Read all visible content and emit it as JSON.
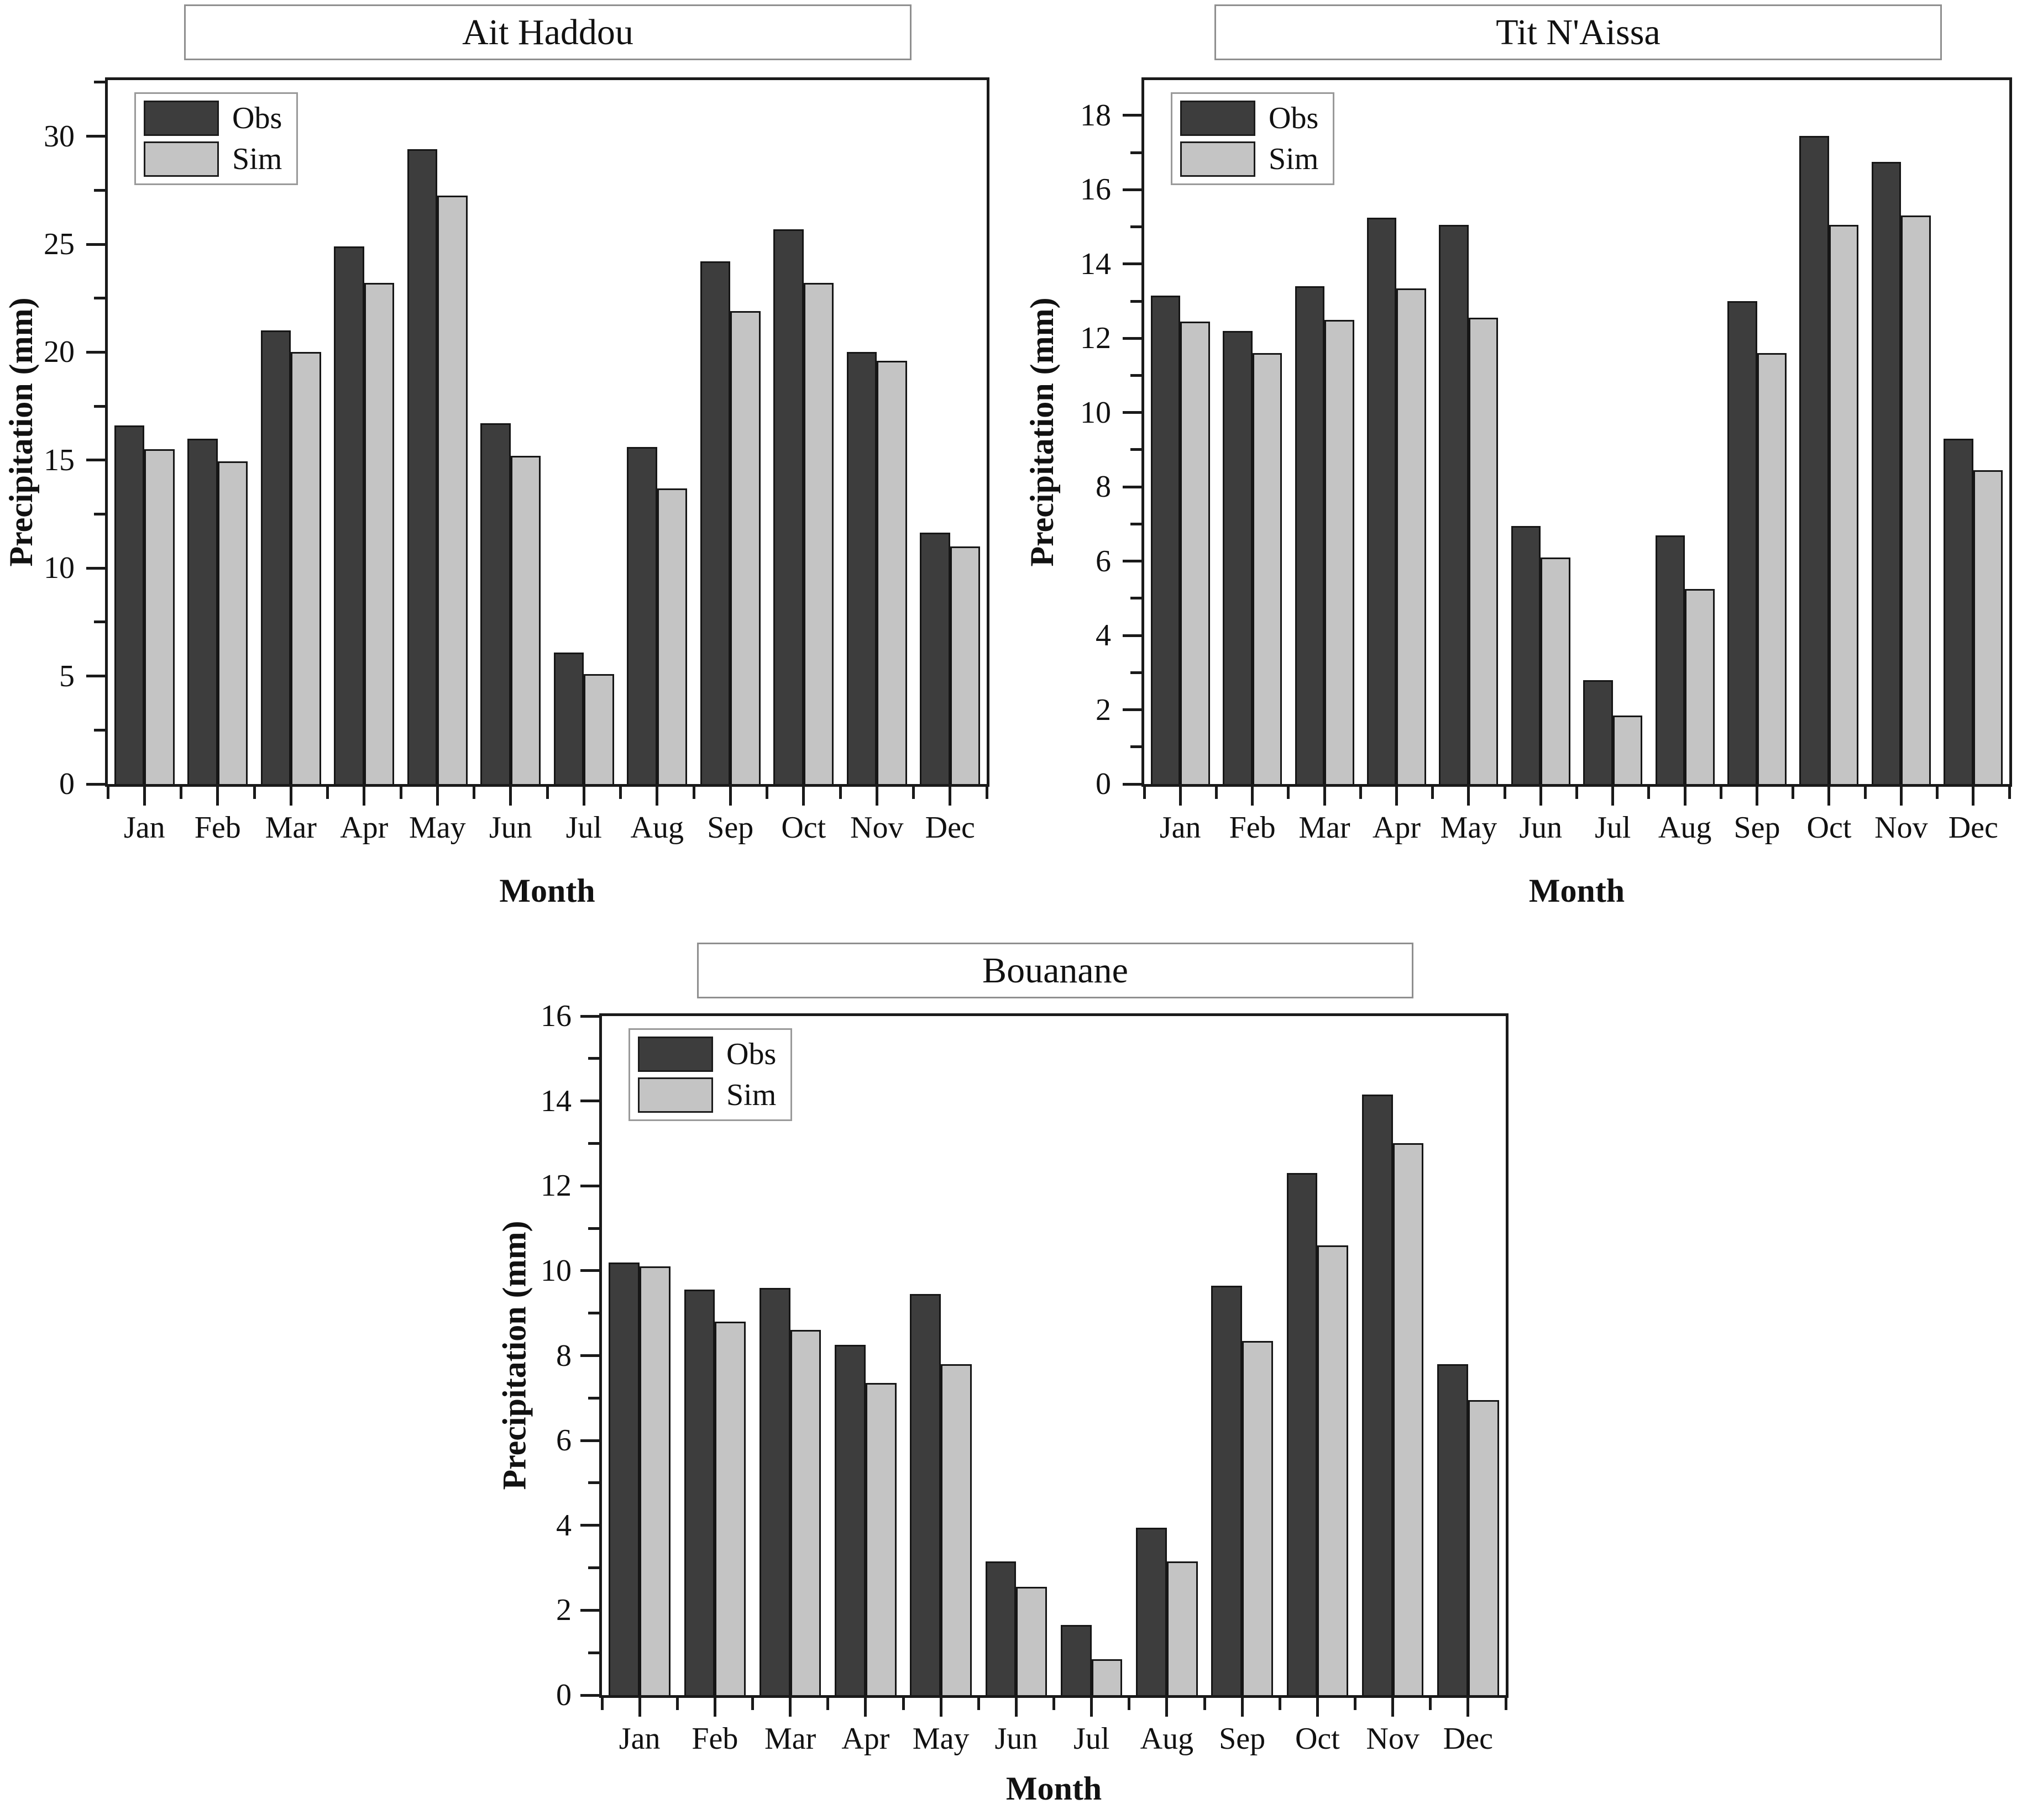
{
  "figure": {
    "background": "#ffffff",
    "colors": {
      "obs_fill": "#3d3d3d",
      "sim_fill": "#c4c4c4",
      "bar_border": "#161616",
      "axis": "#1a1a1a"
    }
  },
  "chart_data": [
    {
      "type": "bar",
      "title": "Ait Haddou",
      "xlabel": "Month",
      "ylabel": "Precipitation (mm)",
      "categories": [
        "Jan",
        "Feb",
        "Mar",
        "Apr",
        "May",
        "Jun",
        "Jul",
        "Aug",
        "Sep",
        "Oct",
        "Nov",
        "Dec"
      ],
      "series": [
        {
          "name": "Obs",
          "values": [
            16.6,
            16.0,
            21.0,
            24.9,
            29.4,
            16.7,
            6.1,
            15.6,
            24.2,
            25.7,
            20.0,
            11.65
          ]
        },
        {
          "name": "Sim",
          "values": [
            15.5,
            14.95,
            20.0,
            23.2,
            27.25,
            15.2,
            5.1,
            13.7,
            21.9,
            23.2,
            19.6,
            11.0
          ]
        }
      ],
      "ylim": [
        0,
        32.6
      ],
      "yticks": [
        0,
        5,
        10,
        15,
        20,
        25,
        30
      ],
      "y_minor_step": 2.5,
      "legend_position": "top-left",
      "grid": false
    },
    {
      "type": "bar",
      "title": "Tit N'Aissa",
      "xlabel": "Month",
      "ylabel": "Precipitation (mm)",
      "categories": [
        "Jan",
        "Feb",
        "Mar",
        "Apr",
        "May",
        "Jun",
        "Jul",
        "Aug",
        "Sep",
        "Oct",
        "Nov",
        "Dec"
      ],
      "series": [
        {
          "name": "Obs",
          "values": [
            13.15,
            12.2,
            13.4,
            15.25,
            15.05,
            6.95,
            2.8,
            6.7,
            13.0,
            17.45,
            16.75,
            9.3
          ]
        },
        {
          "name": "Sim",
          "values": [
            12.45,
            11.6,
            12.5,
            13.35,
            12.55,
            6.1,
            1.85,
            5.25,
            11.6,
            15.05,
            15.3,
            8.45
          ]
        }
      ],
      "ylim": [
        0,
        18.95
      ],
      "yticks": [
        0,
        2,
        4,
        6,
        8,
        10,
        12,
        14,
        16,
        18
      ],
      "y_minor_step": 1,
      "legend_position": "top-left",
      "grid": false
    },
    {
      "type": "bar",
      "title": "Bouanane",
      "xlabel": "Month",
      "ylabel": "Precipitation (mm)",
      "categories": [
        "Jan",
        "Feb",
        "Mar",
        "Apr",
        "May",
        "Jun",
        "Jul",
        "Aug",
        "Sep",
        "Oct",
        "Nov",
        "Dec"
      ],
      "series": [
        {
          "name": "Obs",
          "values": [
            10.2,
            9.55,
            9.6,
            8.25,
            9.45,
            3.15,
            1.65,
            3.95,
            9.65,
            12.3,
            14.15,
            7.8
          ]
        },
        {
          "name": "Sim",
          "values": [
            10.1,
            8.8,
            8.6,
            7.35,
            7.8,
            2.55,
            0.85,
            3.15,
            8.35,
            10.6,
            13.0,
            6.95
          ]
        }
      ],
      "ylim": [
        0,
        16
      ],
      "yticks": [
        0,
        2,
        4,
        6,
        8,
        10,
        12,
        14,
        16
      ],
      "y_minor_step": 1,
      "legend_position": "top-left",
      "grid": false
    }
  ]
}
